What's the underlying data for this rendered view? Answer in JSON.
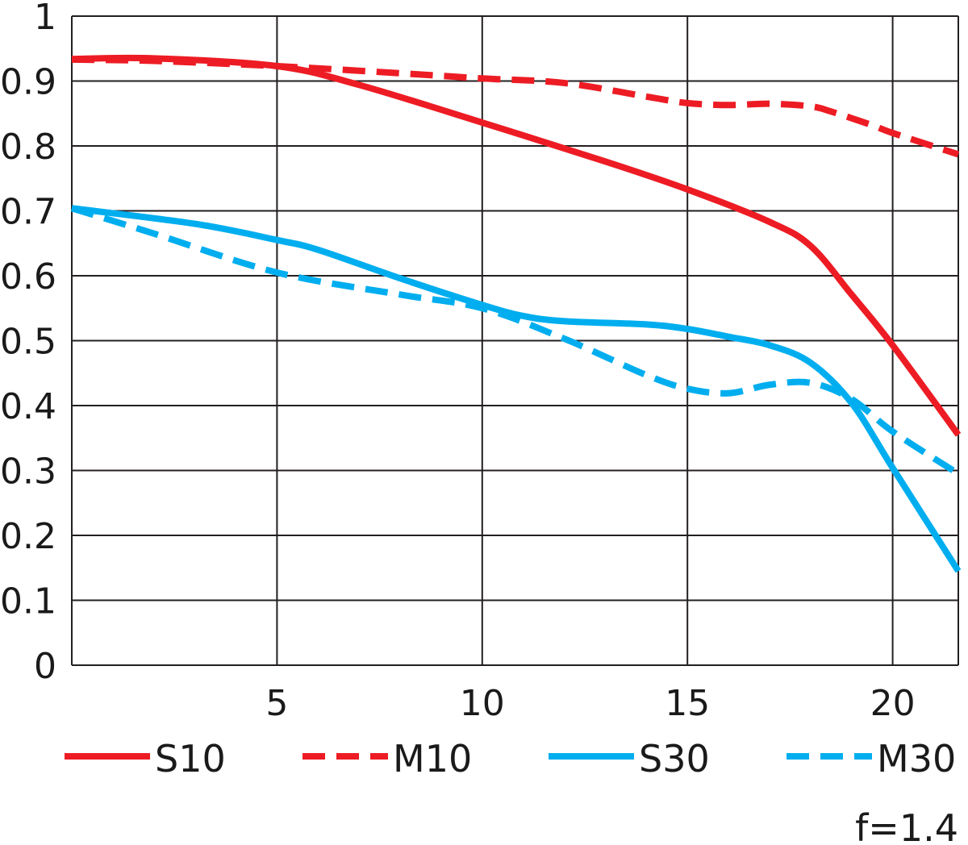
{
  "chart_data": {
    "type": "line",
    "title": "",
    "xlabel": "",
    "ylabel": "",
    "xlim": [
      0,
      21.6
    ],
    "ylim": [
      0,
      1
    ],
    "grid": true,
    "x_ticks": [
      "5",
      "10",
      "15",
      "20"
    ],
    "x_tick_values": [
      5,
      10,
      15,
      20
    ],
    "y_ticks": [
      "0",
      "0.1",
      "0.2",
      "0.3",
      "0.4",
      "0.5",
      "0.6",
      "0.7",
      "0.8",
      "0.9",
      "1"
    ],
    "y_tick_values": [
      0,
      0.1,
      0.2,
      0.3,
      0.4,
      0.5,
      0.6,
      0.7,
      0.8,
      0.9,
      1
    ],
    "legend_placement": "bottom",
    "annotation": "f=1.4",
    "series": [
      {
        "name": "S10",
        "color": "#ed1c24",
        "dashed": false,
        "x": [
          0,
          2,
          5,
          7,
          10,
          13,
          15,
          17,
          18,
          19,
          20,
          21.6
        ],
        "y": [
          0.934,
          0.935,
          0.923,
          0.894,
          0.836,
          0.776,
          0.733,
          0.683,
          0.646,
          0.571,
          0.493,
          0.355
        ]
      },
      {
        "name": "M10",
        "color": "#ed1c24",
        "dashed": true,
        "x": [
          0,
          2,
          5,
          8,
          10,
          12,
          14,
          15,
          16,
          17,
          18,
          18.5,
          19.5,
          20,
          21.6
        ],
        "y": [
          0.933,
          0.931,
          0.923,
          0.912,
          0.904,
          0.897,
          0.876,
          0.866,
          0.863,
          0.865,
          0.861,
          0.853,
          0.832,
          0.82,
          0.787
        ]
      },
      {
        "name": "S30",
        "color": "#00aeef",
        "dashed": false,
        "x": [
          0,
          3,
          5,
          6,
          8,
          10,
          11,
          12,
          14,
          15,
          16,
          17,
          18,
          19,
          20,
          21.6
        ],
        "y": [
          0.704,
          0.68,
          0.655,
          0.64,
          0.596,
          0.555,
          0.538,
          0.53,
          0.525,
          0.518,
          0.506,
          0.493,
          0.466,
          0.404,
          0.304,
          0.145
        ]
      },
      {
        "name": "M30",
        "color": "#00aeef",
        "dashed": true,
        "x": [
          0,
          2,
          5,
          8,
          10,
          12,
          14,
          15,
          16,
          17,
          18,
          19,
          20,
          21.6
        ],
        "y": [
          0.704,
          0.665,
          0.605,
          0.571,
          0.55,
          0.503,
          0.447,
          0.426,
          0.419,
          0.432,
          0.435,
          0.41,
          0.36,
          0.295
        ]
      }
    ]
  }
}
